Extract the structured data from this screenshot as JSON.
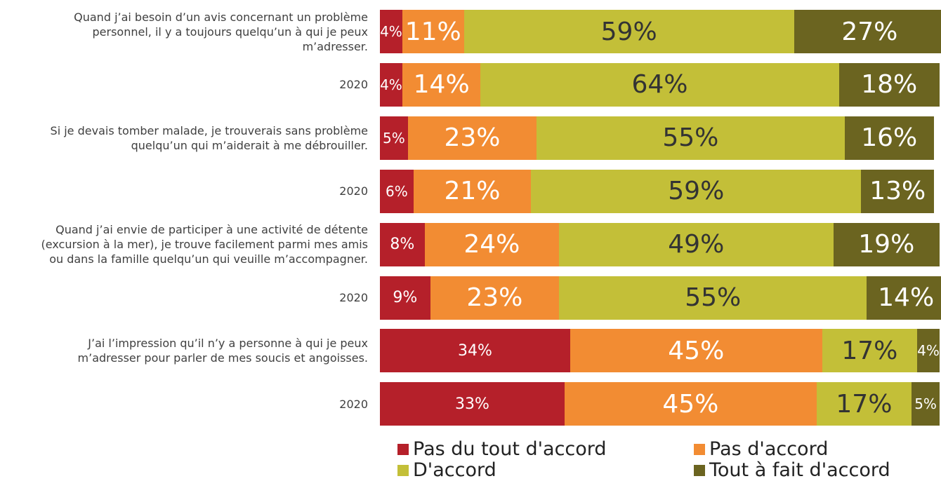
{
  "chart_data": {
    "type": "bar",
    "orientation": "horizontal",
    "stacked": true,
    "categories": [
      "Quand j’ai besoin d’un avis concernant un problème personnel, il y a toujours quelqu’un à qui je peux m’adresser.",
      "2020",
      "Si je devais tomber malade, je trouverais sans problème quelqu’un qui m’aiderait à me débrouiller.",
      "2020",
      "Quand j’ai envie de participer à une activité de détente (excursion à la mer), je trouve facilement parmi mes amis ou dans la famille quelqu’un qui veuille m’accompagner.",
      "2020",
      "J’ai l’impression qu’il n’y a personne à qui je peux m’adresser pour parler de mes soucis et angoisses.",
      "2020"
    ],
    "xlim": [
      0,
      100
    ],
    "series": [
      {
        "name": "Pas du tout d'accord",
        "color": "#b5202a",
        "values": [
          4,
          4,
          5,
          6,
          8,
          9,
          34,
          33
        ],
        "value_labels": [
          "4%",
          "4%",
          "5%",
          "6%",
          "8%",
          "9%",
          "34%",
          "33%"
        ]
      },
      {
        "name": "Pas d'accord",
        "color": "#f28c33",
        "values": [
          11,
          14,
          23,
          21,
          24,
          23,
          45,
          45
        ],
        "value_labels": [
          "11%",
          "14%",
          "23%",
          "21%",
          "24%",
          "23%",
          "45%",
          "45%"
        ]
      },
      {
        "name": "D'accord",
        "color": "#c3bf38",
        "values": [
          59,
          64,
          55,
          59,
          49,
          55,
          17,
          17
        ],
        "value_labels": [
          "59%",
          "64%",
          "55%",
          "59%",
          "49%",
          "55%",
          "17%",
          "17%"
        ]
      },
      {
        "name": "Tout à fait d'accord",
        "color": "#6b6420",
        "values": [
          27,
          18,
          16,
          13,
          19,
          14,
          4,
          5
        ],
        "value_labels": [
          "27%",
          "18%",
          "16%",
          "13%",
          "19%",
          "14%",
          "4%",
          "5%"
        ]
      }
    ],
    "legend": "bottom"
  }
}
